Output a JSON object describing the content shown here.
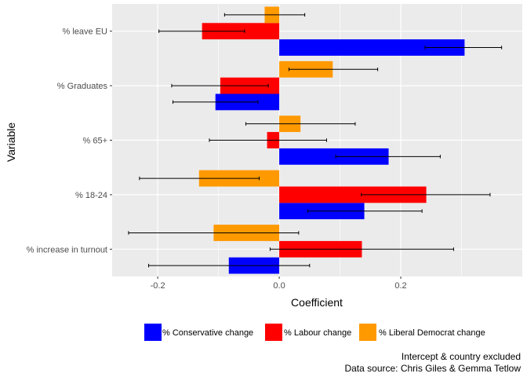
{
  "chart_data": {
    "type": "bar",
    "orientation": "horizontal",
    "title": "",
    "xlabel": "Coefficient",
    "ylabel": "Variable",
    "xlim": [
      -0.275,
      0.4
    ],
    "xticks": [
      -0.2,
      0.0,
      0.2
    ],
    "xtick_labels": [
      "-0.2",
      "0.0",
      "0.2"
    ],
    "categories": [
      "% leave EU",
      "% Graduates",
      "% 65+",
      "% 18-24",
      "% increase in turnout"
    ],
    "series": [
      {
        "name": "% Conservative change",
        "color": "#0000FF",
        "values": [
          0.305,
          -0.105,
          0.18,
          0.14,
          -0.083
        ],
        "error_low": [
          0.24,
          -0.175,
          0.093,
          0.047,
          -0.215
        ],
        "error_high": [
          0.366,
          -0.035,
          0.265,
          0.235,
          0.05
        ]
      },
      {
        "name": "% Labour change",
        "color": "#FF0000",
        "values": [
          -0.127,
          -0.097,
          -0.02,
          0.242,
          0.136
        ],
        "error_low": [
          -0.198,
          -0.177,
          -0.115,
          0.135,
          -0.015
        ],
        "error_high": [
          -0.057,
          -0.018,
          0.078,
          0.347,
          0.287
        ]
      },
      {
        "name": "% Liberal Democrat change",
        "color": "#FF9900",
        "values": [
          -0.024,
          0.088,
          0.035,
          -0.132,
          -0.108
        ],
        "error_low": [
          -0.09,
          0.016,
          -0.055,
          -0.23,
          -0.248
        ],
        "error_high": [
          0.042,
          0.162,
          0.125,
          -0.033,
          0.032
        ]
      }
    ],
    "grid": true,
    "legend_position": "bottom"
  },
  "caption": {
    "line1": "Intercept & country excluded",
    "line2": "Data source: Chris Giles & Gemma Tetlow"
  }
}
